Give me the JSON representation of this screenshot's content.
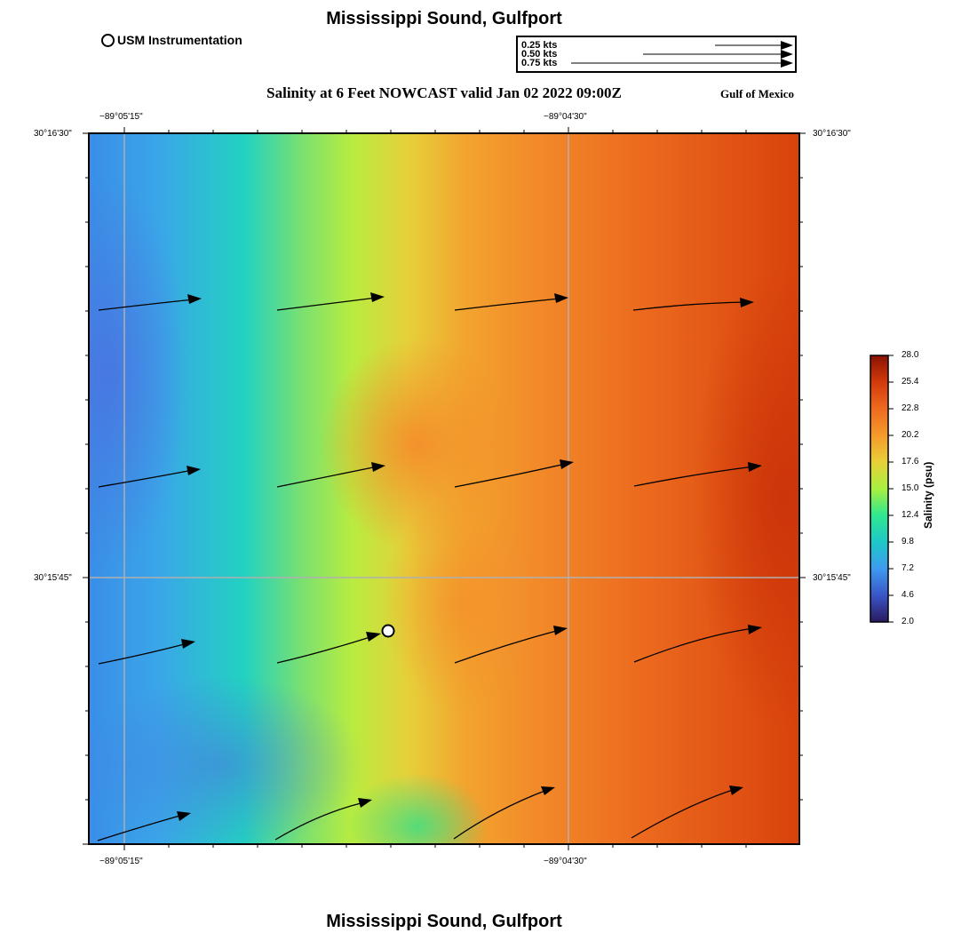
{
  "header": {
    "title": "Mississippi Sound, Gulfport",
    "subtitle": "Salinity at 6 Feet NOWCAST valid Jan 02 2022 09:00Z",
    "region": "Gulf of Mexico"
  },
  "footer": {
    "title": "Mississippi Sound, Gulfport"
  },
  "legend": {
    "station_label": "USM Instrumentation",
    "speed_scale": [
      "0.25 kts",
      "0.50 kts",
      "0.75 kts"
    ]
  },
  "axes": {
    "lon_labels": [
      "−89°05'15\"",
      "−89°04'30\""
    ],
    "lat_labels": [
      "30°16'30\"",
      "30°15'45\""
    ]
  },
  "colorbar": {
    "title": "Salinity (psu)",
    "ticks": [
      "28.0",
      "25.4",
      "22.8",
      "20.2",
      "17.6",
      "15.0",
      "12.4",
      "9.8",
      "7.2",
      "4.6",
      "2.0"
    ],
    "colors": [
      "#2a1a5e",
      "#3a55c8",
      "#3e9af0",
      "#1ec8c8",
      "#2fe890",
      "#a8f040",
      "#e8d038",
      "#f59a2a",
      "#ee6a1e",
      "#d23a0a",
      "#8a1204"
    ]
  }
}
